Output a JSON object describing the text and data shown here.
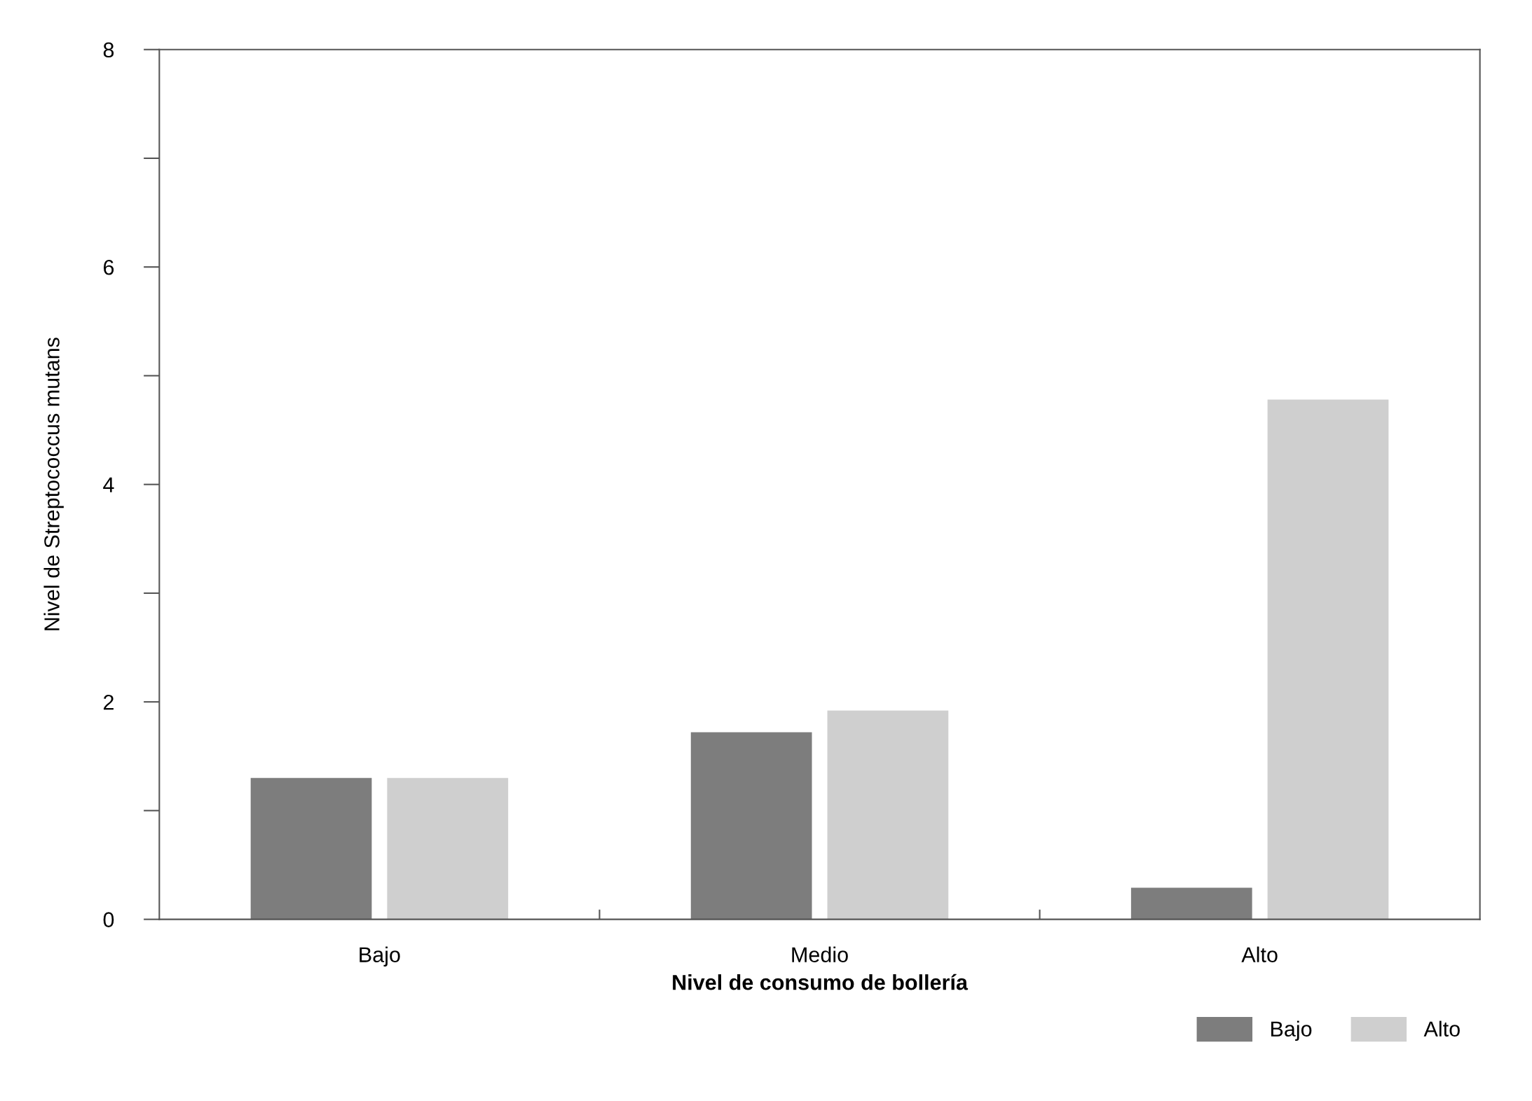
{
  "chart_data": {
    "type": "bar",
    "xlabel": "Nivel de consumo de bollería",
    "ylabel": "Nivel de Streptococcus mutans",
    "categories": [
      "Bajo",
      "Medio",
      "Alto"
    ],
    "series": [
      {
        "name": "Bajo",
        "color": "#7d7d7d",
        "values": [
          1.3,
          1.72,
          0.29
        ]
      },
      {
        "name": "Alto",
        "color": "#cfcfcf",
        "values": [
          1.3,
          1.92,
          4.78
        ]
      }
    ],
    "ylim": [
      0,
      8
    ],
    "yticks": [
      0,
      2,
      4,
      6,
      8
    ],
    "grid": false,
    "legend": "bottom right"
  }
}
